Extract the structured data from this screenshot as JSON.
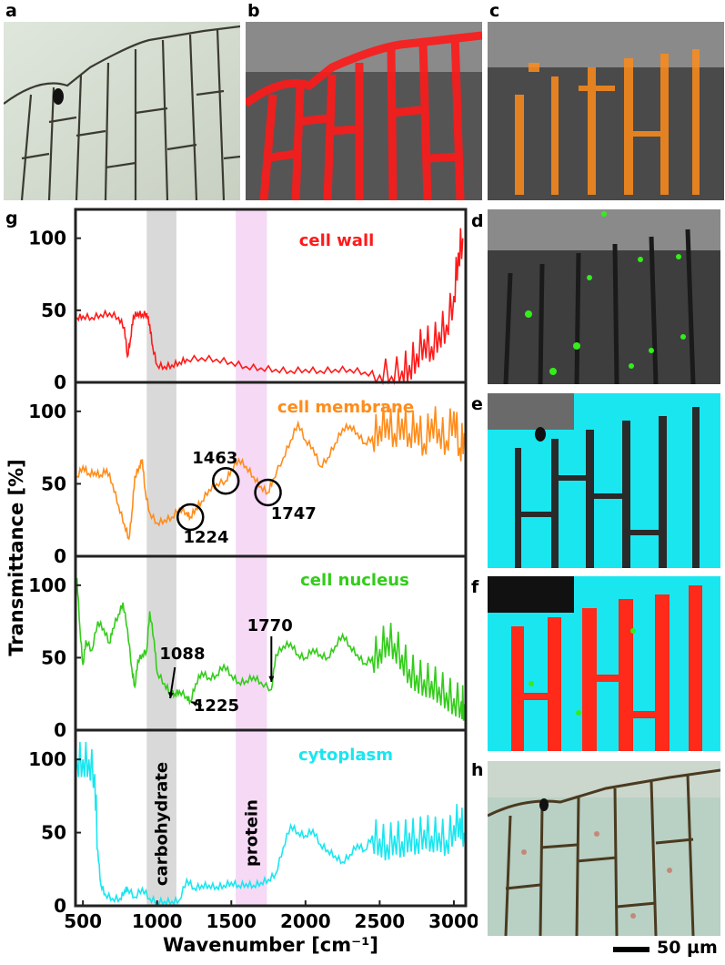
{
  "panels": {
    "a": "a",
    "b": "b",
    "c": "c",
    "d": "d",
    "e": "e",
    "f": "f",
    "g": "g",
    "h": "h"
  },
  "scale_bar": {
    "label": "50 µm"
  },
  "colors": {
    "cell_wall": "#ff1a1a",
    "cell_membrane": "#ff8c1a",
    "cell_nucleus": "#33cc1a",
    "cytoplasm": "#1ae6f0",
    "carbohydrate_band": "#d9d9d9",
    "protein_band": "#f5d9f5"
  },
  "chart_data": {
    "type": "line",
    "xlabel": "Wavenumber [cm⁻¹]",
    "ylabel": "Transmittance [%]",
    "xlim": [
      450,
      3080
    ],
    "ylim": [
      0,
      120
    ],
    "x_ticks": [
      "500",
      "1000",
      "1500",
      "2000",
      "2500",
      "3000"
    ],
    "x_tick_values": [
      500,
      1000,
      1500,
      2000,
      2500,
      3000
    ],
    "y_ticks": [
      "0",
      "50",
      "100"
    ],
    "y_tick_values": [
      0,
      50,
      100
    ],
    "bands": [
      {
        "name": "carbohydrate",
        "range": [
          930,
          1130
        ]
      },
      {
        "name": "protein",
        "range": [
          1530,
          1740
        ]
      }
    ],
    "series": [
      {
        "name": "cell wall",
        "points": [
          [
            460,
            45
          ],
          [
            500,
            46
          ],
          [
            560,
            45
          ],
          [
            620,
            47
          ],
          [
            680,
            48
          ],
          [
            740,
            45
          ],
          [
            780,
            38
          ],
          [
            800,
            18
          ],
          [
            820,
            30
          ],
          [
            840,
            46
          ],
          [
            870,
            48
          ],
          [
            900,
            47
          ],
          [
            930,
            48
          ],
          [
            950,
            40
          ],
          [
            970,
            25
          ],
          [
            1000,
            12
          ],
          [
            1050,
            11
          ],
          [
            1100,
            12
          ],
          [
            1150,
            14
          ],
          [
            1200,
            16
          ],
          [
            1300,
            17
          ],
          [
            1400,
            16
          ],
          [
            1500,
            14
          ],
          [
            1600,
            11
          ],
          [
            1700,
            10
          ],
          [
            1800,
            9
          ],
          [
            1900,
            8
          ],
          [
            2000,
            9
          ],
          [
            2100,
            8
          ],
          [
            2200,
            9
          ],
          [
            2300,
            9
          ],
          [
            2400,
            7
          ],
          [
            2500,
            5
          ],
          [
            2580,
            4
          ],
          [
            2650,
            8
          ],
          [
            2700,
            12
          ],
          [
            2750,
            20
          ],
          [
            2800,
            30
          ],
          [
            2850,
            25
          ],
          [
            2900,
            35
          ],
          [
            2950,
            40
          ],
          [
            3000,
            60
          ],
          [
            3030,
            90
          ],
          [
            3060,
            100
          ]
        ]
      },
      {
        "name": "cell membrane",
        "points": [
          [
            460,
            55
          ],
          [
            500,
            62
          ],
          [
            540,
            57
          ],
          [
            580,
            58
          ],
          [
            620,
            56
          ],
          [
            660,
            60
          ],
          [
            700,
            50
          ],
          [
            740,
            35
          ],
          [
            780,
            22
          ],
          [
            810,
            12
          ],
          [
            830,
            30
          ],
          [
            850,
            55
          ],
          [
            880,
            62
          ],
          [
            900,
            67
          ],
          [
            920,
            45
          ],
          [
            950,
            30
          ],
          [
            1000,
            23
          ],
          [
            1050,
            25
          ],
          [
            1100,
            27
          ],
          [
            1150,
            33
          ],
          [
            1200,
            30
          ],
          [
            1224,
            27
          ],
          [
            1260,
            33
          ],
          [
            1300,
            38
          ],
          [
            1350,
            46
          ],
          [
            1400,
            50
          ],
          [
            1463,
            52
          ],
          [
            1500,
            60
          ],
          [
            1550,
            67
          ],
          [
            1600,
            62
          ],
          [
            1650,
            55
          ],
          [
            1700,
            48
          ],
          [
            1747,
            44
          ],
          [
            1780,
            53
          ],
          [
            1850,
            68
          ],
          [
            1900,
            80
          ],
          [
            1950,
            92
          ],
          [
            2000,
            80
          ],
          [
            2050,
            75
          ],
          [
            2100,
            62
          ],
          [
            2150,
            68
          ],
          [
            2200,
            78
          ],
          [
            2250,
            88
          ],
          [
            2300,
            90
          ],
          [
            2350,
            85
          ],
          [
            2400,
            78
          ],
          [
            2450,
            82
          ],
          [
            2500,
            90
          ],
          [
            2550,
            95
          ],
          [
            2600,
            85
          ],
          [
            2650,
            95
          ],
          [
            2700,
            85
          ],
          [
            2750,
            92
          ],
          [
            2800,
            78
          ],
          [
            2850,
            95
          ],
          [
            2900,
            88
          ],
          [
            2950,
            80
          ],
          [
            3000,
            100
          ],
          [
            3040,
            75
          ],
          [
            3070,
            85
          ]
        ]
      },
      {
        "name": "cell nucleus",
        "points": [
          [
            460,
            105
          ],
          [
            480,
            70
          ],
          [
            500,
            45
          ],
          [
            520,
            62
          ],
          [
            560,
            55
          ],
          [
            600,
            75
          ],
          [
            640,
            70
          ],
          [
            680,
            60
          ],
          [
            700,
            70
          ],
          [
            740,
            80
          ],
          [
            770,
            88
          ],
          [
            800,
            70
          ],
          [
            830,
            42
          ],
          [
            850,
            30
          ],
          [
            870,
            48
          ],
          [
            900,
            52
          ],
          [
            930,
            55
          ],
          [
            950,
            82
          ],
          [
            980,
            62
          ],
          [
            1000,
            40
          ],
          [
            1050,
            32
          ],
          [
            1088,
            26
          ],
          [
            1120,
            25
          ],
          [
            1150,
            27
          ],
          [
            1200,
            23
          ],
          [
            1225,
            20
          ],
          [
            1260,
            32
          ],
          [
            1300,
            40
          ],
          [
            1350,
            36
          ],
          [
            1400,
            38
          ],
          [
            1450,
            45
          ],
          [
            1500,
            38
          ],
          [
            1550,
            33
          ],
          [
            1600,
            34
          ],
          [
            1650,
            37
          ],
          [
            1700,
            33
          ],
          [
            1770,
            28
          ],
          [
            1800,
            52
          ],
          [
            1850,
            58
          ],
          [
            1900,
            60
          ],
          [
            1950,
            52
          ],
          [
            2000,
            50
          ],
          [
            2050,
            56
          ],
          [
            2100,
            52
          ],
          [
            2150,
            50
          ],
          [
            2200,
            58
          ],
          [
            2250,
            66
          ],
          [
            2300,
            58
          ],
          [
            2350,
            52
          ],
          [
            2400,
            46
          ],
          [
            2450,
            50
          ],
          [
            2500,
            56
          ],
          [
            2550,
            64
          ],
          [
            2600,
            60
          ],
          [
            2650,
            52
          ],
          [
            2700,
            42
          ],
          [
            2750,
            38
          ],
          [
            2800,
            35
          ],
          [
            2850,
            34
          ],
          [
            2900,
            30
          ],
          [
            2950,
            26
          ],
          [
            3000,
            22
          ],
          [
            3050,
            20
          ],
          [
            3070,
            18
          ]
        ]
      },
      {
        "name": "cytoplasm",
        "points": [
          [
            460,
            100
          ],
          [
            500,
            100
          ],
          [
            540,
            100
          ],
          [
            580,
            90
          ],
          [
            600,
            38
          ],
          [
            620,
            15
          ],
          [
            650,
            8
          ],
          [
            700,
            5
          ],
          [
            750,
            5
          ],
          [
            780,
            10
          ],
          [
            800,
            12
          ],
          [
            850,
            6
          ],
          [
            900,
            12
          ],
          [
            950,
            5
          ],
          [
            1000,
            3
          ],
          [
            1050,
            3
          ],
          [
            1100,
            3
          ],
          [
            1150,
            4
          ],
          [
            1200,
            18
          ],
          [
            1250,
            12
          ],
          [
            1300,
            14
          ],
          [
            1350,
            14
          ],
          [
            1400,
            13
          ],
          [
            1450,
            14
          ],
          [
            1500,
            16
          ],
          [
            1550,
            14
          ],
          [
            1600,
            15
          ],
          [
            1650,
            14
          ],
          [
            1700,
            16
          ],
          [
            1750,
            18
          ],
          [
            1800,
            22
          ],
          [
            1850,
            40
          ],
          [
            1900,
            55
          ],
          [
            1950,
            50
          ],
          [
            2000,
            48
          ],
          [
            2050,
            52
          ],
          [
            2100,
            42
          ],
          [
            2150,
            38
          ],
          [
            2200,
            34
          ],
          [
            2250,
            30
          ],
          [
            2300,
            35
          ],
          [
            2350,
            42
          ],
          [
            2400,
            38
          ],
          [
            2450,
            48
          ],
          [
            2500,
            46
          ],
          [
            2550,
            42
          ],
          [
            2600,
            48
          ],
          [
            2650,
            44
          ],
          [
            2700,
            50
          ],
          [
            2750,
            46
          ],
          [
            2800,
            52
          ],
          [
            2850,
            48
          ],
          [
            2900,
            50
          ],
          [
            2950,
            45
          ],
          [
            3000,
            55
          ],
          [
            3040,
            60
          ],
          [
            3070,
            50
          ]
        ]
      }
    ],
    "annotations": {
      "membrane": [
        "1463",
        "1224",
        "1747"
      ],
      "nucleus": [
        "1088",
        "1225",
        "1770"
      ]
    }
  }
}
